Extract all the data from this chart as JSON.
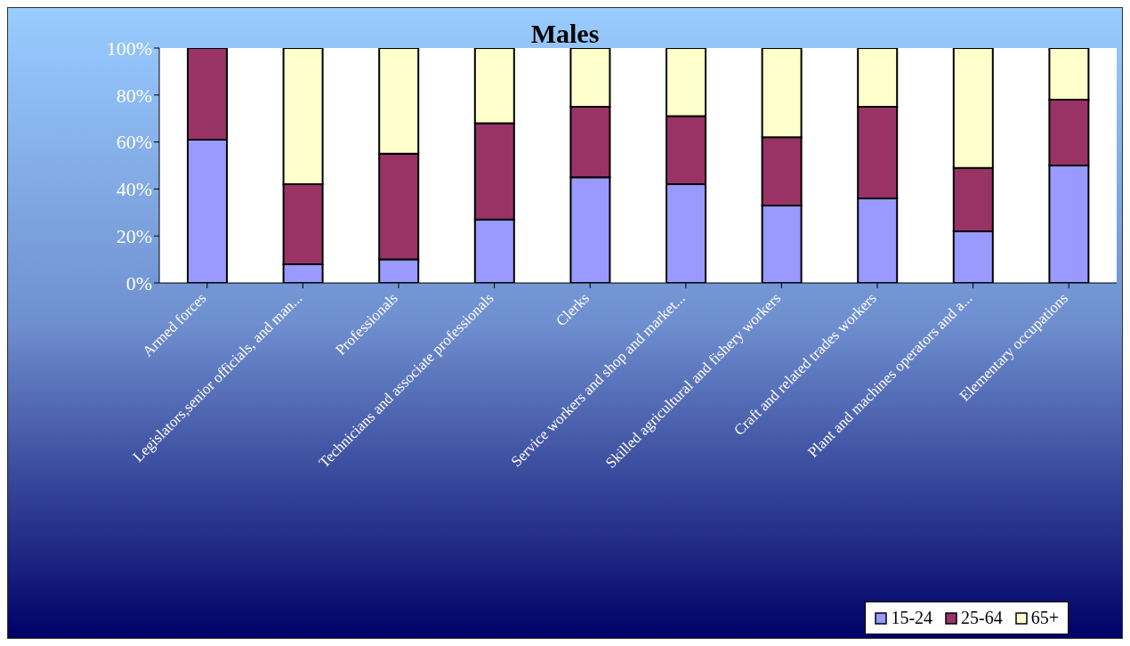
{
  "chart_data": {
    "type": "bar",
    "title": "Males",
    "stacked": true,
    "categories": [
      "Armed forces",
      "Legislators,senior officials, and man...",
      "Professionals",
      "Technicians and associate professionals",
      "Clerks",
      "Service workers and shop and market...",
      "Skilled agricultural and fishery workers",
      "Craft and related trades workers",
      "Plant and machines operators and a...",
      "Elementary occupations"
    ],
    "series": [
      {
        "name": "15-24",
        "color": "#9999ff",
        "values": [
          61,
          8,
          10,
          27,
          45,
          42,
          33,
          36,
          22,
          50
        ]
      },
      {
        "name": "25-64",
        "color": "#993366",
        "values": [
          39,
          34,
          45,
          41,
          30,
          29,
          29,
          39,
          27,
          28
        ]
      },
      {
        "name": "65+",
        "color": "#ffffcc",
        "values": [
          0,
          58,
          45,
          32,
          25,
          29,
          38,
          25,
          51,
          22
        ]
      }
    ],
    "ylim": [
      0,
      100
    ],
    "yticks": [
      {
        "value": 0,
        "label": "0%"
      },
      {
        "value": 20,
        "label": "20%"
      },
      {
        "value": 40,
        "label": "40%"
      },
      {
        "value": 60,
        "label": "60%"
      },
      {
        "value": 80,
        "label": "80%"
      },
      {
        "value": 100,
        "label": "100%"
      }
    ],
    "grid": false,
    "legend": "bottom right"
  }
}
